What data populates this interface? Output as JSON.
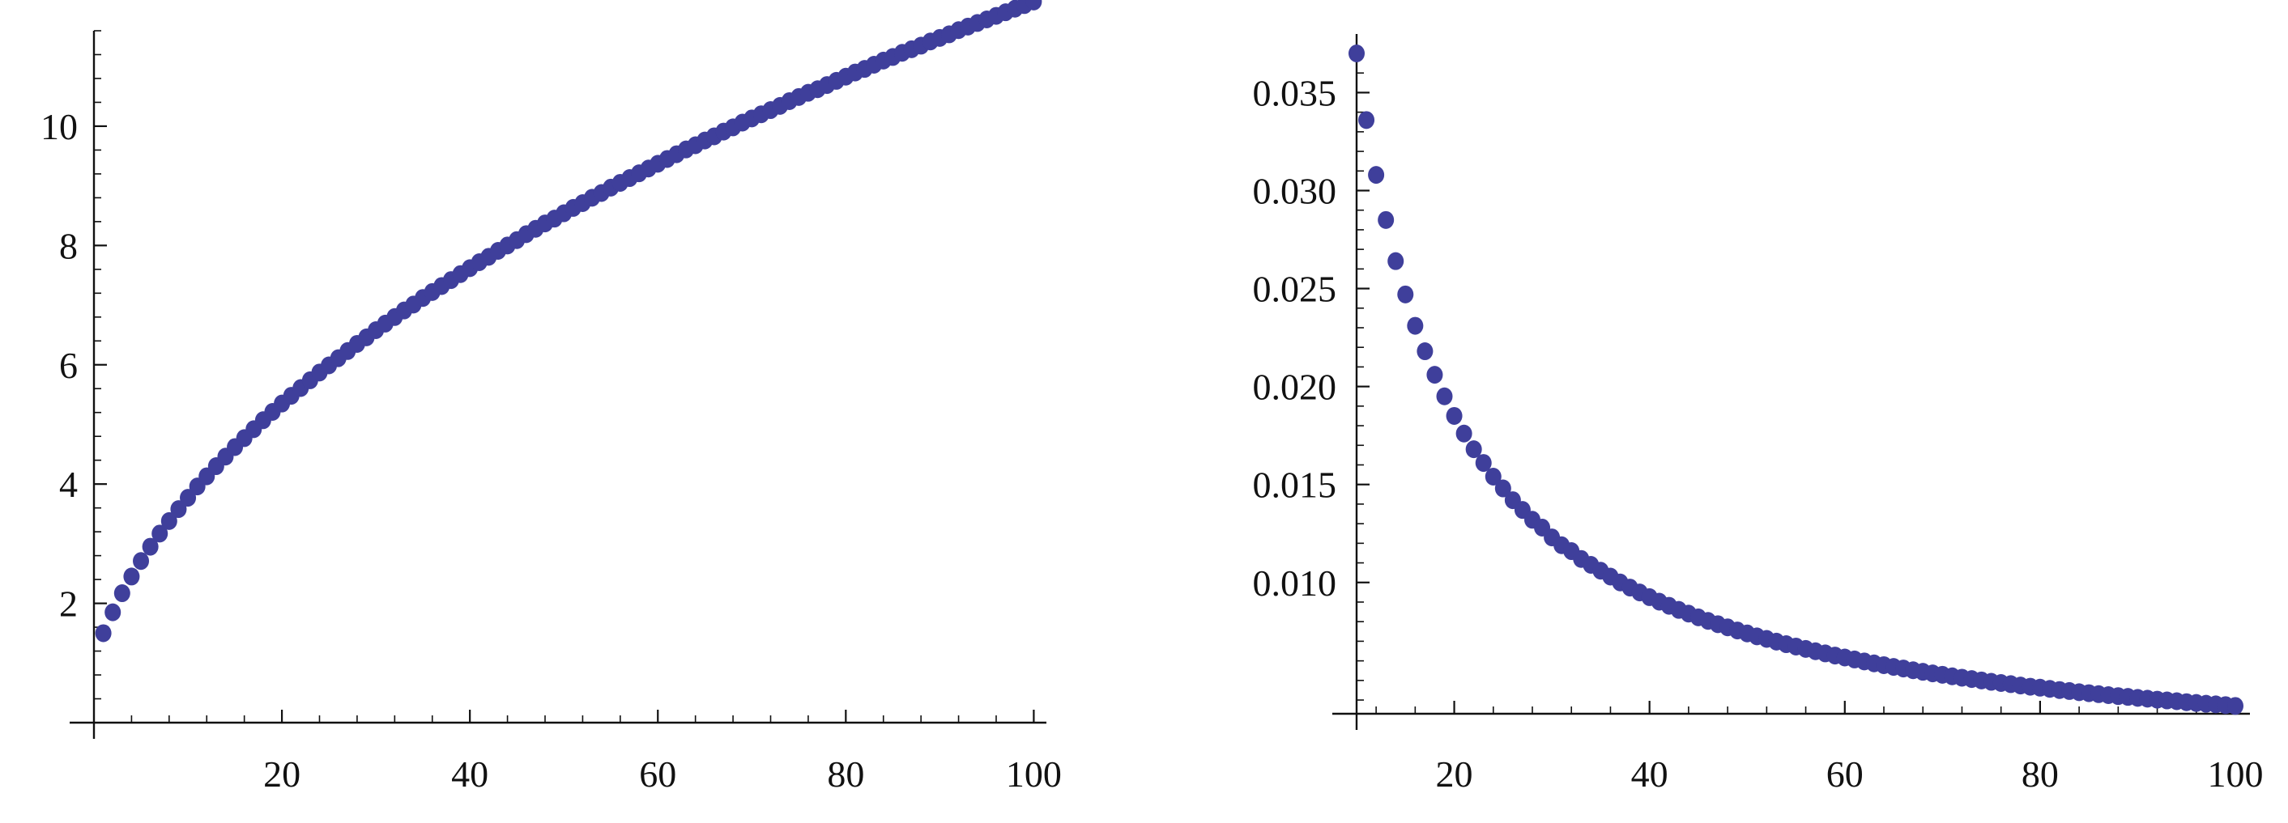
{
  "chart_data": [
    {
      "type": "scatter",
      "title": "",
      "xlabel": "",
      "ylabel": "",
      "xlim": [
        0,
        101
      ],
      "ylim": [
        0,
        11.6
      ],
      "axis_origin": [
        0,
        0
      ],
      "x_ticks": [
        20,
        40,
        60,
        80,
        100
      ],
      "y_ticks": [
        2,
        4,
        6,
        8,
        10
      ],
      "x_tick_labels": [
        "20",
        "40",
        "60",
        "80",
        "100"
      ],
      "y_tick_labels": [
        "2",
        "4",
        "6",
        "8",
        "10"
      ],
      "x_minor_step": 4,
      "y_minor_step": 0.4,
      "grid": false,
      "legend": "none",
      "marker_color": "#3f3f9b",
      "series": [
        {
          "x": [
            1,
            2,
            3,
            4,
            5,
            6,
            7,
            8,
            9,
            10,
            11,
            12,
            13,
            14,
            15,
            16,
            17,
            18,
            19,
            20,
            21,
            22,
            23,
            24,
            25,
            26,
            27,
            28,
            29,
            30,
            31,
            32,
            33,
            34,
            35,
            36,
            37,
            38,
            39,
            40,
            41,
            42,
            43,
            44,
            45,
            46,
            47,
            48,
            49,
            50,
            51,
            52,
            53,
            54,
            55,
            56,
            57,
            58,
            59,
            60,
            61,
            62,
            63,
            64,
            65,
            66,
            67,
            68,
            69,
            70,
            71,
            72,
            73,
            74,
            75,
            76,
            77,
            78,
            79,
            80,
            81,
            82,
            83,
            84,
            85,
            86,
            87,
            88,
            89,
            90,
            91,
            92,
            93,
            94,
            95,
            96,
            97,
            98,
            99,
            100
          ],
          "y": [
            1.5,
            1.85,
            2.17,
            2.45,
            2.71,
            2.95,
            3.17,
            3.38,
            3.58,
            3.77,
            3.96,
            4.13,
            4.3,
            4.46,
            4.62,
            4.77,
            4.92,
            5.07,
            5.21,
            5.35,
            5.48,
            5.61,
            5.74,
            5.87,
            5.99,
            6.11,
            6.23,
            6.35,
            6.46,
            6.58,
            6.69,
            6.8,
            6.91,
            7.01,
            7.12,
            7.22,
            7.32,
            7.42,
            7.52,
            7.62,
            7.72,
            7.81,
            7.91,
            8.0,
            8.09,
            8.19,
            8.28,
            8.37,
            8.45,
            8.54,
            8.63,
            8.71,
            8.8,
            8.88,
            8.97,
            9.05,
            9.13,
            9.21,
            9.29,
            9.37,
            9.45,
            9.53,
            9.61,
            9.68,
            9.76,
            9.83,
            9.91,
            9.98,
            10.06,
            10.13,
            10.2,
            10.27,
            10.34,
            10.42,
            10.49,
            10.56,
            10.62,
            10.69,
            10.76,
            10.83,
            10.9,
            10.96,
            11.03,
            11.1,
            11.16,
            11.23,
            11.29,
            11.35,
            11.42,
            11.48,
            11.54,
            11.61,
            11.67,
            11.73,
            11.79,
            11.85,
            11.91,
            11.97,
            12.03,
            12.09
          ]
        }
      ]
    },
    {
      "type": "scatter",
      "title": "",
      "xlabel": "",
      "ylabel": "",
      "xlim": [
        10,
        100
      ],
      "ylim": [
        0.0033,
        0.037
      ],
      "axis_origin": [
        10,
        0.0033
      ],
      "x_ticks": [
        20,
        40,
        60,
        80,
        100
      ],
      "y_ticks": [
        0.01,
        0.015,
        0.02,
        0.025,
        0.03,
        0.035
      ],
      "x_tick_labels": [
        "20",
        "40",
        "60",
        "80",
        "100"
      ],
      "y_tick_labels": [
        "0.010",
        "0.015",
        "0.020",
        "0.025",
        "0.030",
        "0.035"
      ],
      "x_minor_step": 4,
      "y_minor_step": 0.001,
      "grid": false,
      "legend": "none",
      "marker_color": "#3f3f9b",
      "series": [
        {
          "x": [
            10,
            11,
            12,
            13,
            14,
            15,
            16,
            17,
            18,
            19,
            20,
            21,
            22,
            23,
            24,
            25,
            26,
            27,
            28,
            29,
            30,
            31,
            32,
            33,
            34,
            35,
            36,
            37,
            38,
            39,
            40,
            41,
            42,
            43,
            44,
            45,
            46,
            47,
            48,
            49,
            50,
            51,
            52,
            53,
            54,
            55,
            56,
            57,
            58,
            59,
            60,
            61,
            62,
            63,
            64,
            65,
            66,
            67,
            68,
            69,
            70,
            71,
            72,
            73,
            74,
            75,
            76,
            77,
            78,
            79,
            80,
            81,
            82,
            83,
            84,
            85,
            86,
            87,
            88,
            89,
            90,
            91,
            92,
            93,
            94,
            95,
            96,
            97,
            98,
            99,
            100
          ],
          "y": [
            0.037,
            0.0336,
            0.0308,
            0.0285,
            0.0264,
            0.0247,
            0.0231,
            0.0218,
            0.0206,
            0.0195,
            0.0185,
            0.0176,
            0.0168,
            0.0161,
            0.0154,
            0.0148,
            0.0142,
            0.0137,
            0.0132,
            0.0128,
            0.0123,
            0.0119,
            0.0116,
            0.0112,
            0.0109,
            0.0106,
            0.0103,
            0.01,
            0.00974,
            0.00949,
            0.00925,
            0.00902,
            0.00881,
            0.0086,
            0.00841,
            0.00822,
            0.00804,
            0.00787,
            0.00771,
            0.00755,
            0.0074,
            0.00725,
            0.00712,
            0.00698,
            0.00685,
            0.00673,
            0.00661,
            0.00649,
            0.00638,
            0.00627,
            0.00617,
            0.00607,
            0.00597,
            0.00587,
            0.00578,
            0.00569,
            0.00561,
            0.00552,
            0.00544,
            0.00536,
            0.00529,
            0.00521,
            0.00514,
            0.00507,
            0.005,
            0.00493,
            0.00487,
            0.00481,
            0.00474,
            0.00468,
            0.00463,
            0.00457,
            0.00451,
            0.00446,
            0.0044,
            0.00435,
            0.0043,
            0.00425,
            0.0042,
            0.00416,
            0.00411,
            0.00407,
            0.00402,
            0.00398,
            0.00394,
            0.00389,
            0.00385,
            0.00381,
            0.00378,
            0.00374,
            0.0037
          ]
        }
      ]
    }
  ]
}
